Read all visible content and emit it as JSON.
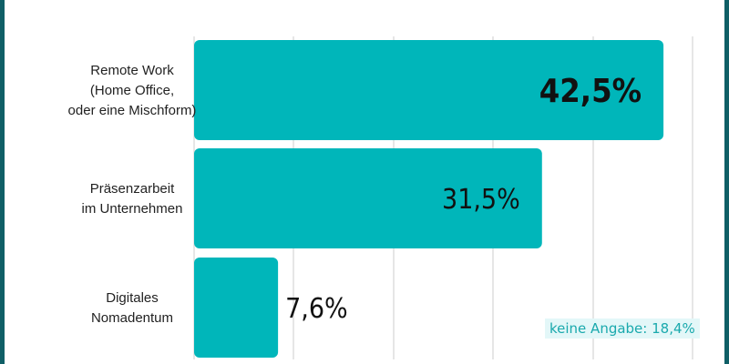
{
  "chart_data": {
    "type": "bar",
    "orientation": "horizontal",
    "categories": [
      [
        "Remote Work",
        "(Home Office,",
        "oder eine Mischform)"
      ],
      [
        "Präsenzarbeit",
        "im Unternehmen"
      ],
      [
        "Digitales",
        "Nomadentum"
      ]
    ],
    "values": [
      42.5,
      31.5,
      7.6
    ],
    "labels": [
      "42,5%",
      "31,5%",
      "7,6%"
    ],
    "unit": "%",
    "grid": true,
    "bar_color": "#00b6ba",
    "annotation": "keine Angabe: 18,4%"
  }
}
